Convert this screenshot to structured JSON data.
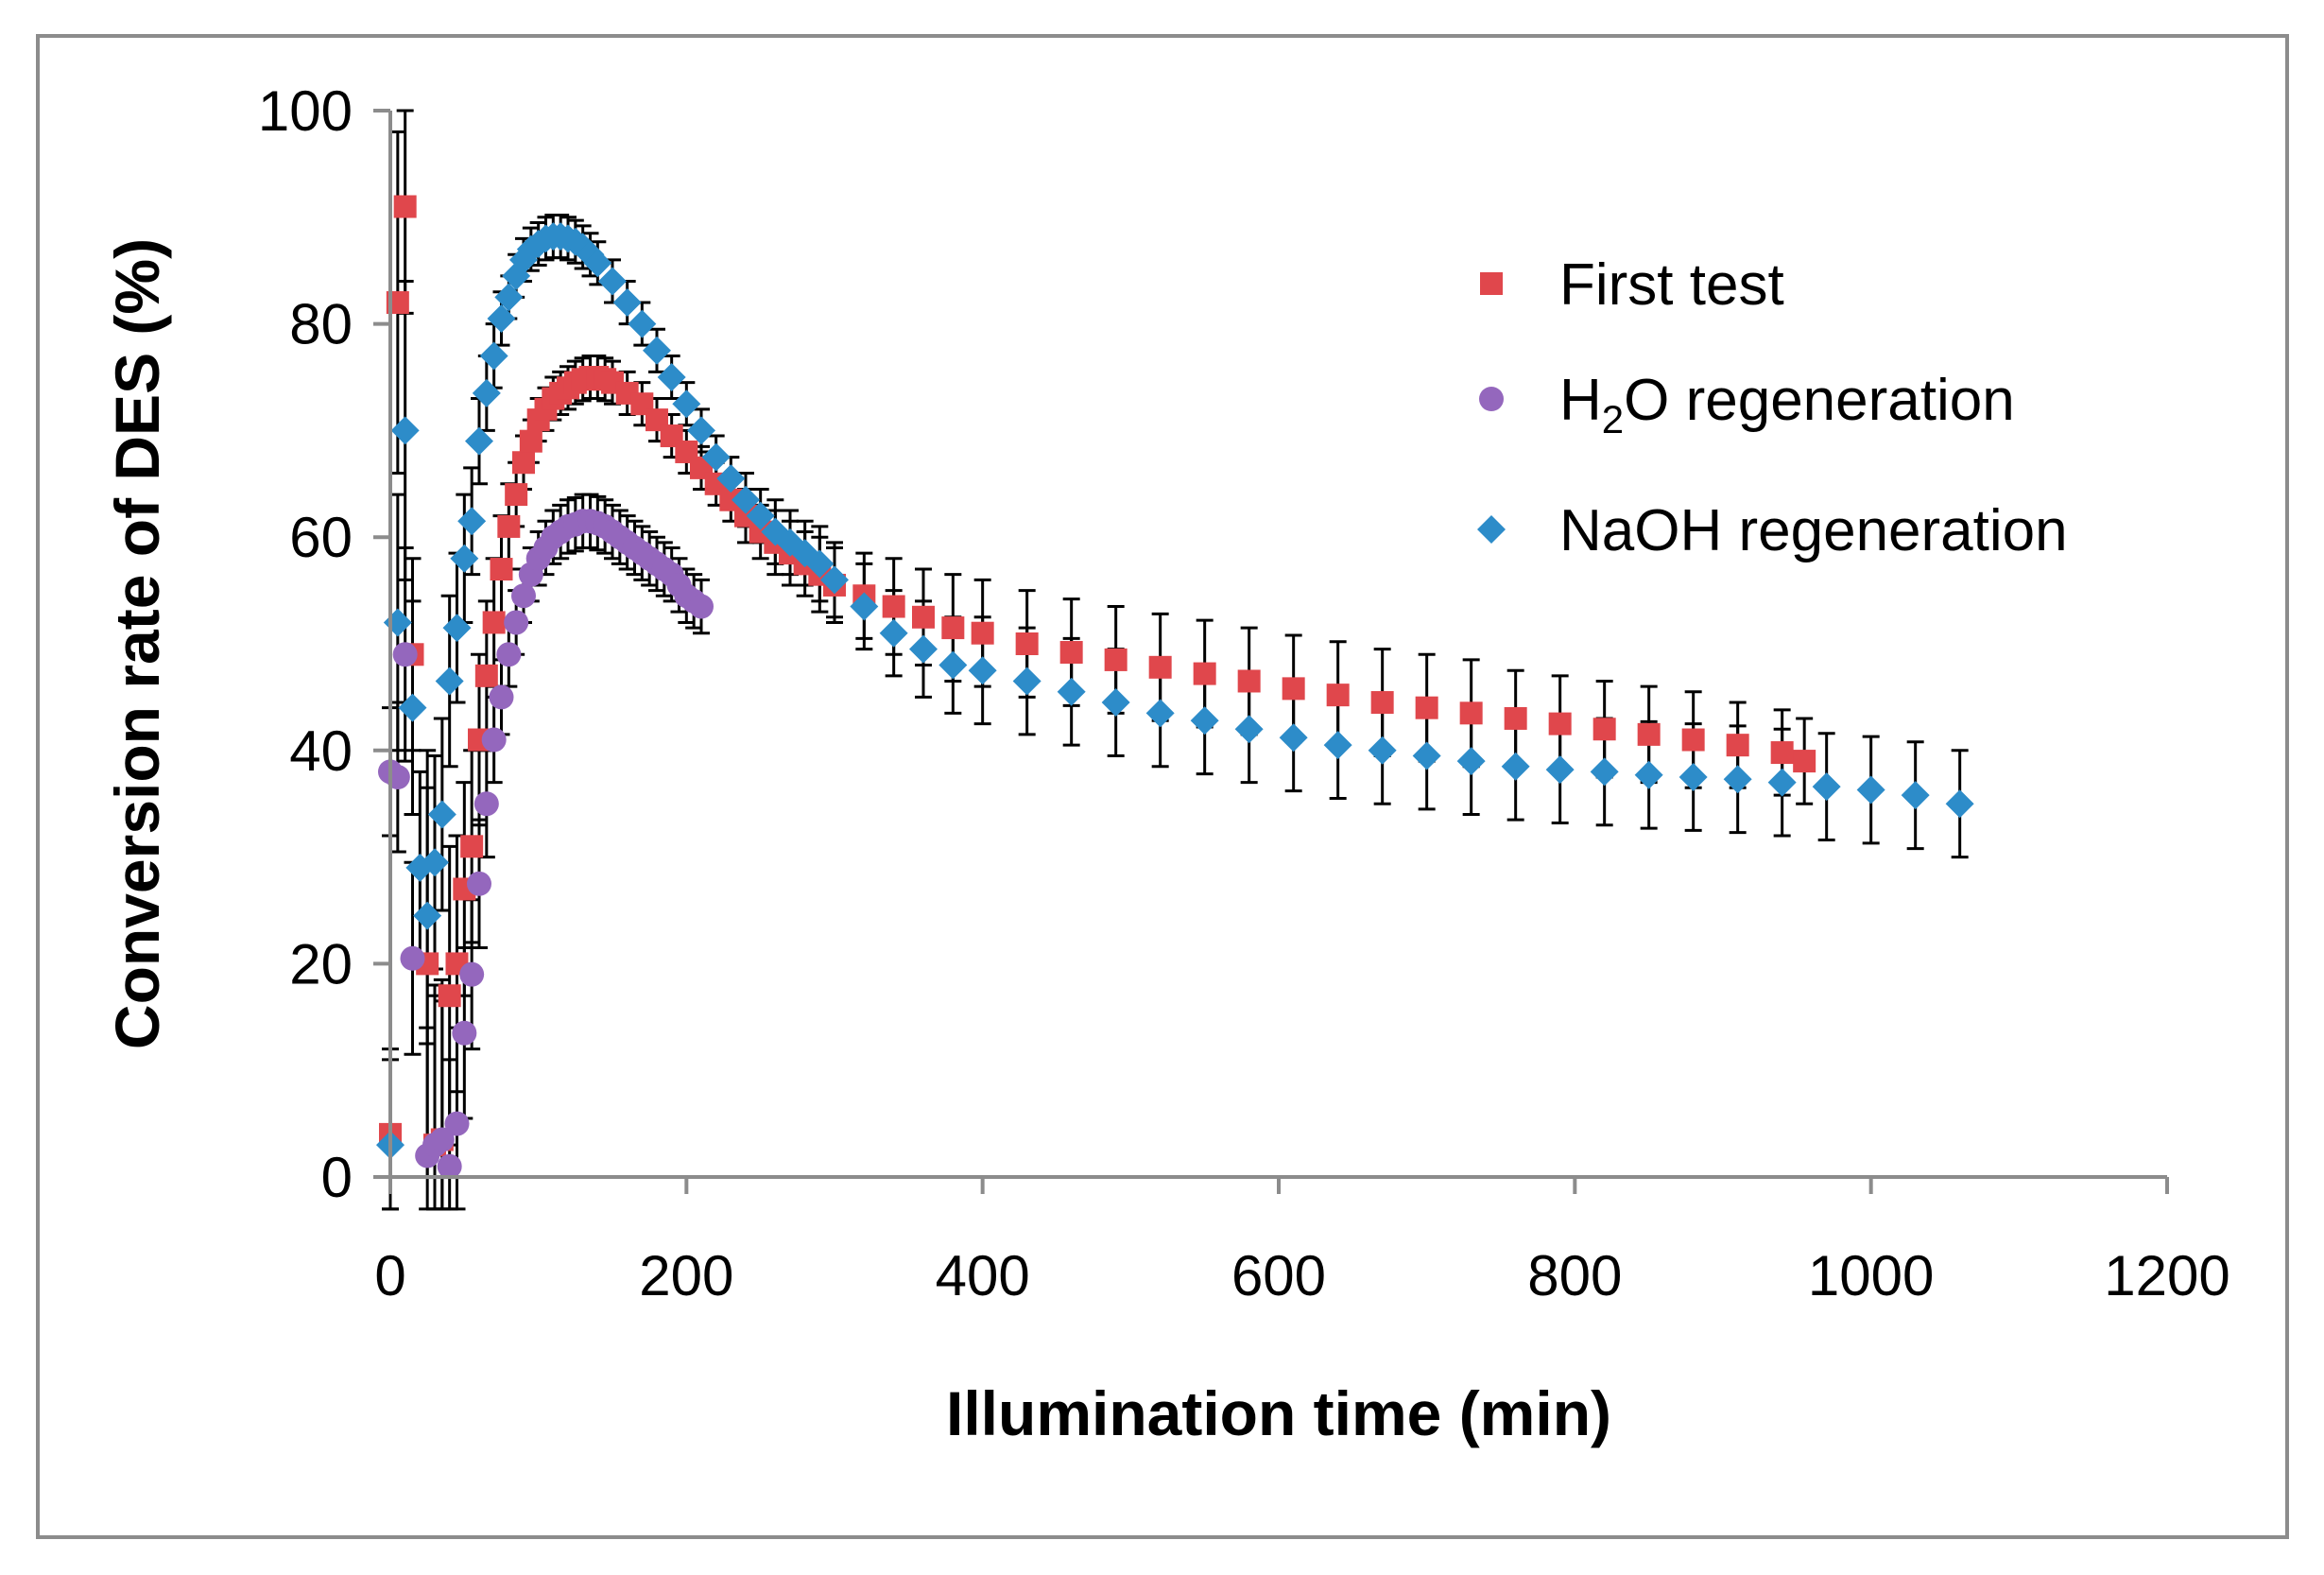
{
  "chart_data": {
    "type": "scatter",
    "title": "",
    "xlabel": "Illumination time (min)",
    "ylabel": "Conversion rate of DES (%)",
    "xlim": [
      0,
      1200
    ],
    "ylim": [
      0,
      100
    ],
    "xticks": [
      0,
      200,
      400,
      600,
      800,
      1000,
      1200
    ],
    "yticks": [
      0,
      20,
      40,
      60,
      80,
      100
    ],
    "xtick_labels": [
      "0",
      "200",
      "400",
      "600",
      "800",
      "1000",
      "1200"
    ],
    "ytick_labels": [
      "0",
      "20",
      "40",
      "60",
      "80",
      "100"
    ],
    "grid": false,
    "legend_position": "top-right",
    "error_bars": true,
    "series": [
      {
        "name": "First test",
        "marker": "square",
        "color": "#E0474C",
        "x": [
          0,
          5,
          10,
          15,
          25,
          30,
          35,
          40,
          45,
          50,
          55,
          60,
          65,
          70,
          75,
          80,
          85,
          90,
          95,
          100,
          105,
          110,
          115,
          120,
          125,
          130,
          135,
          140,
          145,
          150,
          160,
          170,
          180,
          190,
          200,
          210,
          220,
          230,
          240,
          250,
          260,
          270,
          280,
          290,
          300,
          320,
          340,
          360,
          380,
          400,
          430,
          460,
          490,
          520,
          550,
          580,
          610,
          640,
          670,
          700,
          730,
          760,
          790,
          820,
          850,
          880,
          910,
          940,
          955
        ],
        "y": [
          4,
          82,
          91,
          49,
          20,
          3,
          3.5,
          17,
          20,
          27,
          31,
          41,
          47,
          52,
          57,
          61,
          64,
          67,
          69,
          71,
          72,
          73,
          73.5,
          74,
          74.5,
          74.8,
          75,
          75,
          74.8,
          74.5,
          73.5,
          72.5,
          71,
          69.5,
          68,
          66.5,
          65,
          63.5,
          62,
          60.5,
          59.5,
          58.5,
          57.5,
          56.5,
          55.5,
          54.5,
          53.5,
          52.5,
          51.5,
          51,
          50,
          49.2,
          48.5,
          47.8,
          47.2,
          46.5,
          45.8,
          45.2,
          44.5,
          44,
          43.5,
          43,
          42.5,
          42,
          41.5,
          41,
          40.5,
          39.8,
          39
        ],
        "error": [
          8,
          16,
          10,
          9,
          20,
          15,
          15,
          14,
          12,
          10,
          9,
          8,
          7,
          6,
          5,
          4,
          3,
          2.5,
          2,
          2,
          2,
          2,
          2,
          2,
          2,
          2,
          2,
          2,
          2,
          2,
          2,
          2,
          2,
          2,
          2,
          2,
          2,
          2,
          2.5,
          2.5,
          3,
          3,
          3,
          3.5,
          3.5,
          4,
          4.5,
          4.5,
          5,
          5,
          5,
          5,
          5,
          5,
          5,
          5,
          5,
          5,
          5,
          5,
          5,
          4.5,
          4.5,
          4.5,
          4.5,
          4.5,
          4,
          4,
          4
        ]
      },
      {
        "name": "H2O regeneration",
        "legend_main": "H",
        "legend_sub": "2",
        "legend_rest": "O regeneration",
        "marker": "circle",
        "color": "#9467BD",
        "x": [
          0,
          5,
          10,
          15,
          25,
          30,
          35,
          40,
          45,
          50,
          55,
          60,
          65,
          70,
          75,
          80,
          85,
          90,
          95,
          100,
          105,
          110,
          115,
          120,
          125,
          130,
          135,
          140,
          145,
          150,
          155,
          160,
          165,
          170,
          175,
          180,
          185,
          190,
          195,
          200,
          205,
          210
        ],
        "y": [
          38,
          37.5,
          49,
          20.5,
          2,
          3,
          3.5,
          1,
          5,
          13.5,
          19,
          27.5,
          35,
          41,
          45,
          49,
          52,
          54.5,
          56.5,
          58,
          59,
          60,
          60.5,
          61,
          61.2,
          61.5,
          61.5,
          61.3,
          61,
          60.5,
          60,
          59.5,
          59,
          58.5,
          58,
          57.5,
          57,
          56.5,
          55.5,
          54.5,
          54,
          53.5
        ],
        "error": [
          6,
          7,
          10,
          9,
          12,
          14,
          13,
          10,
          9,
          8,
          7,
          6,
          5,
          4,
          3.5,
          3,
          3,
          2.5,
          2.5,
          2.5,
          2.5,
          2.5,
          2.5,
          2.5,
          2.5,
          2.5,
          2.5,
          2.5,
          2.5,
          2.5,
          2.5,
          2.5,
          2.5,
          2.5,
          2.5,
          2.5,
          2.5,
          2.5,
          2.5,
          2.5,
          2.5,
          2.5
        ]
      },
      {
        "name": "NaOH regeneration",
        "marker": "diamond",
        "color": "#2D8CC9",
        "x": [
          0,
          5,
          10,
          15,
          20,
          25,
          30,
          35,
          40,
          45,
          50,
          55,
          60,
          65,
          70,
          75,
          80,
          85,
          90,
          95,
          100,
          105,
          110,
          115,
          120,
          125,
          130,
          135,
          140,
          150,
          160,
          170,
          180,
          190,
          200,
          210,
          220,
          230,
          240,
          250,
          260,
          270,
          280,
          290,
          300,
          320,
          340,
          360,
          380,
          400,
          430,
          460,
          490,
          520,
          550,
          580,
          610,
          640,
          670,
          700,
          730,
          760,
          790,
          820,
          850,
          880,
          910,
          940,
          970,
          1000,
          1030,
          1060
        ],
        "y": [
          3,
          52,
          70,
          44,
          29,
          24.5,
          29.5,
          34,
          46.5,
          51.5,
          58,
          61.5,
          69,
          73.5,
          77,
          80.5,
          82.5,
          84.5,
          86,
          87,
          87.5,
          88,
          88.2,
          88.2,
          88,
          87.7,
          87.2,
          86.5,
          85.7,
          84,
          82,
          80,
          77.5,
          75,
          72.5,
          70,
          67.5,
          65.5,
          63.5,
          62,
          60.5,
          59.5,
          58.5,
          57.5,
          56,
          53.5,
          51,
          49.5,
          48,
          47.5,
          46.5,
          45.5,
          44.5,
          43.5,
          42.8,
          42,
          41.2,
          40.5,
          40,
          39.5,
          39,
          38.5,
          38.2,
          38,
          37.7,
          37.5,
          37.3,
          37,
          36.6,
          36.3,
          35.8,
          35
        ],
        "error": [
          8,
          12,
          14,
          10,
          9,
          12,
          10,
          9,
          8,
          7,
          6,
          5,
          4,
          3.5,
          3,
          2.5,
          2,
          2,
          2,
          2,
          2,
          2,
          2,
          2,
          2,
          2,
          2,
          2,
          2,
          2,
          2,
          2,
          2,
          2,
          2,
          2,
          2,
          2,
          2.5,
          2.5,
          3,
          3,
          3,
          3.5,
          3.5,
          4,
          4,
          4.5,
          4.5,
          5,
          5,
          5,
          5,
          5,
          5,
          5,
          5,
          5,
          5,
          5,
          5,
          5,
          5,
          5,
          5,
          5,
          5,
          5,
          5,
          5,
          5,
          5
        ]
      }
    ]
  }
}
